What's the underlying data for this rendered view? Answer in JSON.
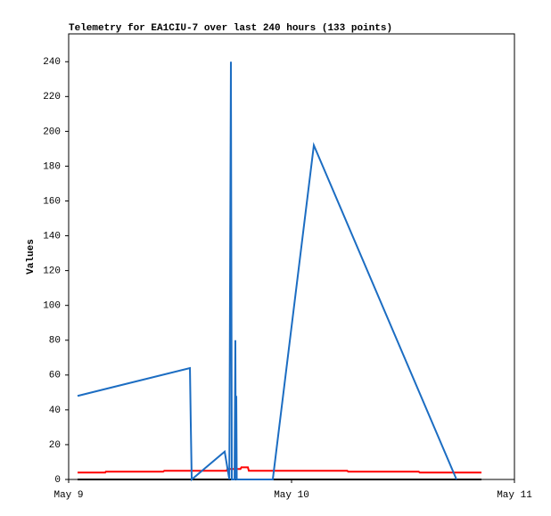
{
  "chart_data": {
    "type": "line",
    "title": "Telemetry for EA1CIU-7 over last 240 hours (133 points)",
    "y_label": "Values",
    "xlim": [
      0,
      48
    ],
    "xticks": [
      {
        "value": 0,
        "label": "May 9"
      },
      {
        "value": 24,
        "label": "May 10"
      },
      {
        "value": 48,
        "label": "May 11"
      }
    ],
    "ylim": [
      0,
      256
    ],
    "yticks": [
      0,
      20,
      40,
      60,
      80,
      100,
      120,
      140,
      160,
      180,
      200,
      220,
      240
    ],
    "series": [
      {
        "color": "#000000",
        "x": [
          0.96,
          44.45
        ],
        "values": [
          0,
          0
        ]
      },
      {
        "color": "#ff0000",
        "x": [
          0.96,
          3.94,
          4.0,
          10.18,
          10.3,
          17.0,
          17.1,
          18.5,
          18.6,
          19.3,
          19.4,
          30.0,
          30.1,
          37.7,
          37.8,
          44.45
        ],
        "values": [
          4,
          4,
          4.5,
          4.5,
          5,
          5,
          6,
          6,
          7,
          7,
          5,
          5,
          4.5,
          4.5,
          4,
          4
        ]
      },
      {
        "color": "#1c6dc2",
        "x": [
          0.96,
          13.06,
          13.15,
          13.25,
          16.8,
          17.3,
          17.47,
          17.57,
          17.86,
          17.95,
          18.0,
          18.05,
          18.1,
          21.98,
          26.4,
          41.76
        ],
        "values": [
          48,
          64,
          32,
          0,
          16,
          0,
          240,
          0,
          0,
          80,
          0,
          48,
          0,
          0,
          192,
          0
        ]
      }
    ]
  }
}
